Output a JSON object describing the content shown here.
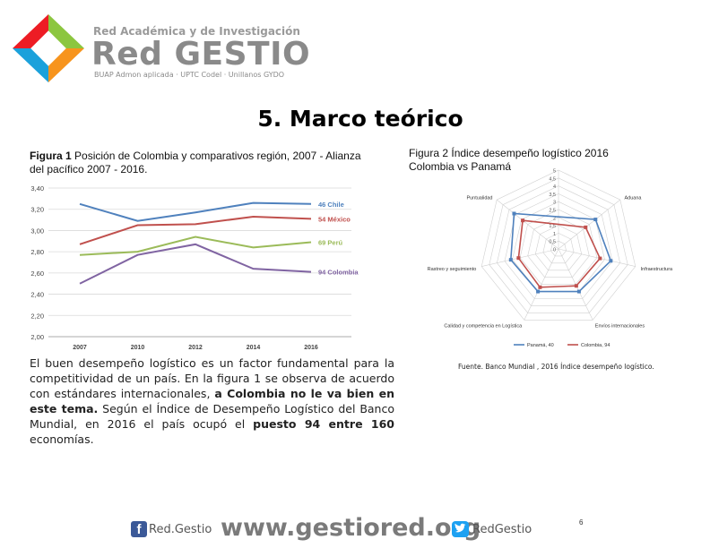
{
  "brand": {
    "network": "Red Académica y de Investigación",
    "name": "Red GESTIO",
    "members": "BUAP Admon aplicada · UPTC Codel · Unillanos GYDO"
  },
  "page_title": "5. Marco teórico",
  "figure1": {
    "caption_label": "Figura 1",
    "caption_text": " Posición de Colombia y comparativos región, 2007 - Alianza del pacífico 2007 - 2016."
  },
  "figure2": {
    "caption_line1": "Figura 2 Índice desempeño logístico 2016",
    "caption_line2": "Colombia vs Panamá"
  },
  "body": {
    "p1": "El buen desempeño logístico es un factor fundamental para la competitividad de un país. En la figura 1 se observa de acuerdo con estándares internacionales, ",
    "p1_bold": "a Colombia no le va bien en este tema.",
    "p2": " Según el Índice de Desempeño Logístico del Banco Mundial, en 2016 el país ocupó el ",
    "p2_bold": "puesto 94 entre 160",
    "p3": " economías."
  },
  "source_note": "Fuente. Banco Mundial , 2016 Índice desempeño logístico.",
  "footer": {
    "facebook_icon": "f",
    "facebook_label": "Red.Gestio",
    "url": "www.gestiored.org",
    "twitter_label": "RedGestio",
    "page_number": "6"
  },
  "chart_data": [
    {
      "type": "line",
      "title": "",
      "x": [
        "2007",
        "2010",
        "2012",
        "2014",
        "2016"
      ],
      "y_ticks": [
        "2,00",
        "2,20",
        "2,40",
        "2,60",
        "2,80",
        "3,00",
        "3,20",
        "3,40"
      ],
      "ylim": [
        2.0,
        3.4
      ],
      "grid": true,
      "series": [
        {
          "name": "46 Chile",
          "color": "#4f81bd",
          "values": [
            3.25,
            3.09,
            3.17,
            3.26,
            3.25
          ]
        },
        {
          "name": "54 México",
          "color": "#c0504d",
          "values": [
            2.87,
            3.05,
            3.06,
            3.13,
            3.11
          ]
        },
        {
          "name": "69 Perú",
          "color": "#9bbb59",
          "values": [
            2.77,
            2.8,
            2.94,
            2.84,
            2.89
          ]
        },
        {
          "name": "94 Colombia",
          "color": "#8064a2",
          "values": [
            2.5,
            2.77,
            2.87,
            2.64,
            2.61
          ]
        }
      ]
    },
    {
      "type": "radar",
      "axes": [
        "Aduana",
        "Infraestructura",
        "Envíos internacionales",
        "Calidad y competencia en Logística",
        "Rastreo y seguimiento",
        "Puntualidad"
      ],
      "r_ticks": [
        "0",
        "0,5",
        "1",
        "1,5",
        "2",
        "2,5",
        "3",
        "3,5",
        "4",
        "4,5",
        "5"
      ],
      "rlim": [
        0,
        5
      ],
      "legend_position": "bottom",
      "series": [
        {
          "name": "Panamá, 40",
          "color": "#4f81bd",
          "values": [
            3.0,
            3.4,
            3.0,
            3.0,
            3.1,
            3.6
          ]
        },
        {
          "name": "Colombia, 94",
          "color": "#c0504d",
          "values": [
            2.2,
            2.7,
            2.6,
            2.7,
            2.6,
            2.9
          ]
        }
      ]
    }
  ]
}
